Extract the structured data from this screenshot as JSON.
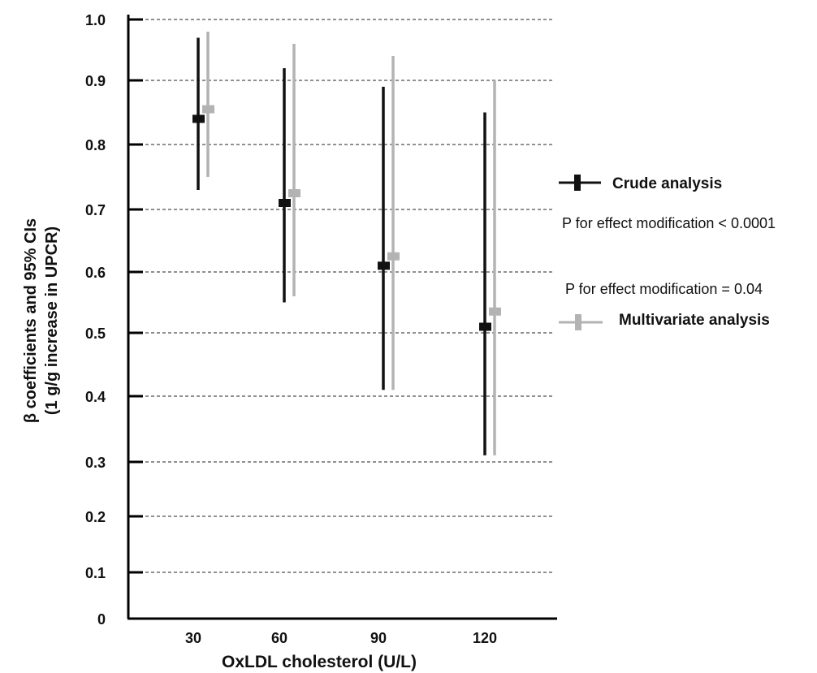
{
  "chart_data": {
    "type": "scatter",
    "title": "",
    "xlabel": "OxLDL cholesterol (U/L)",
    "ylabel_line1": "β coefficients and 95% CIs",
    "ylabel_line2": "(1 g/g increase in UPCR)",
    "categories": [
      "30",
      "60",
      "90",
      "120"
    ],
    "ylim": [
      0,
      1.0
    ],
    "yticks": [
      {
        "value": 0,
        "label": "0"
      },
      {
        "value": 0.1,
        "label": "0.1"
      },
      {
        "value": 0.2,
        "label": "0.2"
      },
      {
        "value": 0.3,
        "label": "0.3"
      },
      {
        "value": 0.4,
        "label": "0.4"
      },
      {
        "value": 0.5,
        "label": "0.5"
      },
      {
        "value": 0.6,
        "label": "0.6"
      },
      {
        "value": 0.7,
        "label": "0.7"
      },
      {
        "value": 0.8,
        "label": "0.8"
      },
      {
        "value": 0.9,
        "label": "0.9"
      },
      {
        "value": 1.0,
        "label": "1.0"
      }
    ],
    "grid": "dashed horizontal",
    "series": [
      {
        "name": "Crude analysis",
        "color": "#111111",
        "estimate": [
          0.84,
          0.71,
          0.61,
          0.51
        ],
        "lower": [
          0.73,
          0.55,
          0.41,
          0.31
        ],
        "upper": [
          0.97,
          0.92,
          0.89,
          0.85
        ]
      },
      {
        "name": "Multivariate analysis",
        "color": "#b3b3b3",
        "estimate": [
          0.855,
          0.725,
          0.625,
          0.535
        ],
        "lower": [
          0.75,
          0.56,
          0.41,
          0.31
        ],
        "upper": [
          0.98,
          0.96,
          0.94,
          0.9
        ]
      }
    ],
    "legend": {
      "crude_label": "Crude analysis",
      "crude_p": "P for effect modification < 0.0001",
      "multi_p": "P for effect modification = 0.04",
      "multi_label": "Multivariate analysis"
    }
  }
}
